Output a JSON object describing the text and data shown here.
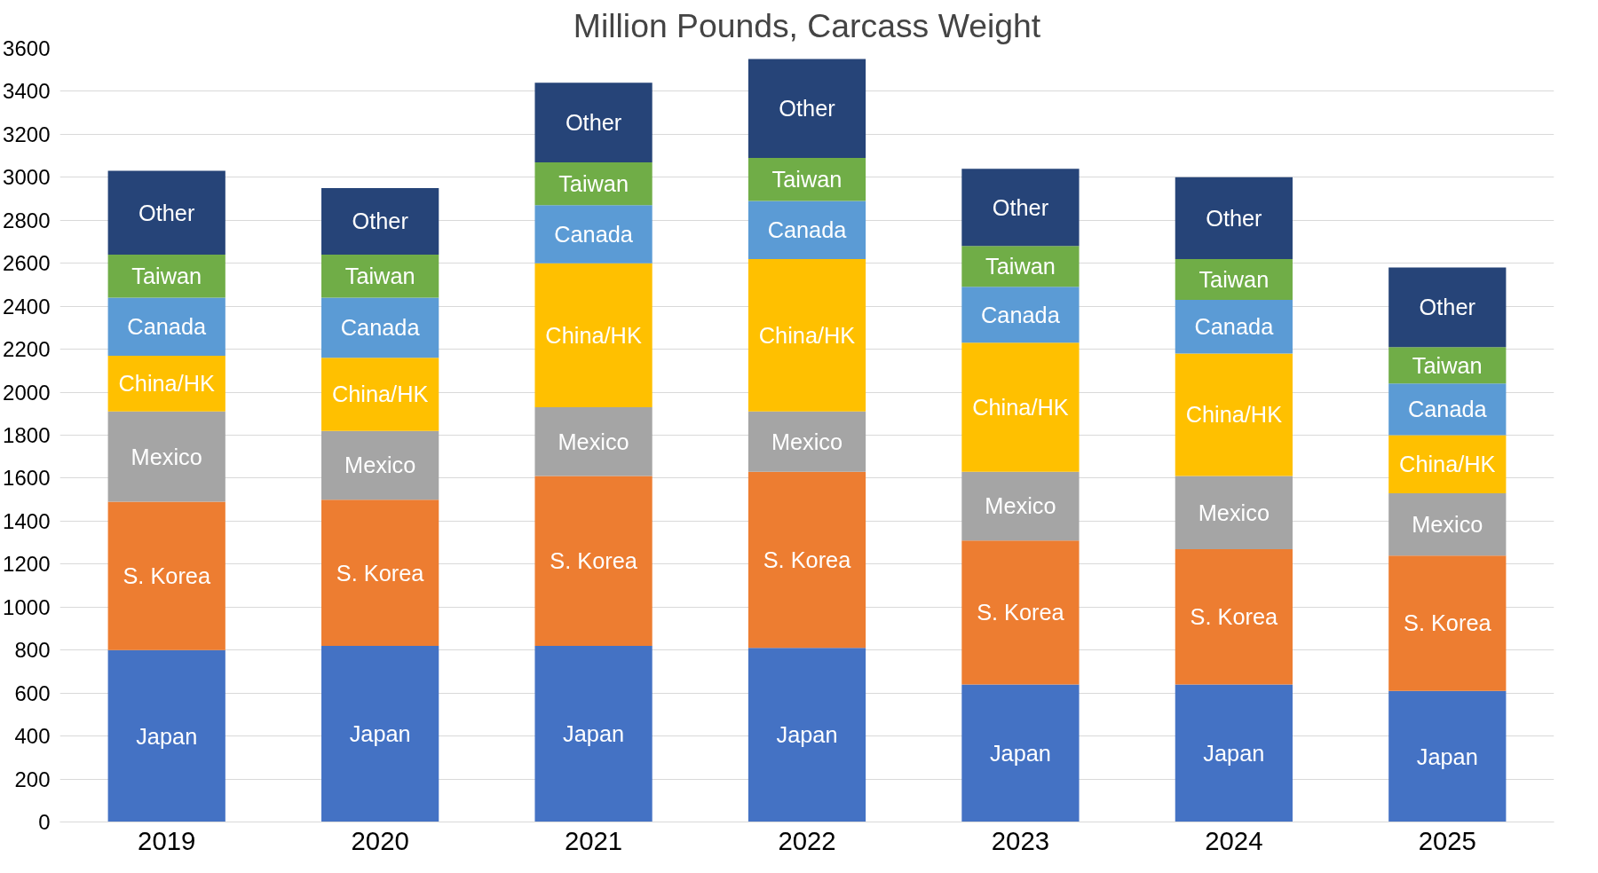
{
  "chart_data": {
    "type": "bar",
    "stacked": true,
    "title": "Million Pounds, Carcass Weight",
    "categories": [
      "2019",
      "2020",
      "2021",
      "2022",
      "2023",
      "2024",
      "2025"
    ],
    "series": [
      {
        "name": "Japan",
        "color": "#4472c4",
        "values": [
          800,
          820,
          820,
          810,
          640,
          640,
          610
        ]
      },
      {
        "name": "S. Korea",
        "color": "#ed7d31",
        "values": [
          690,
          680,
          790,
          820,
          670,
          630,
          630
        ]
      },
      {
        "name": "Mexico",
        "color": "#a5a5a5",
        "values": [
          420,
          320,
          320,
          280,
          320,
          340,
          290
        ]
      },
      {
        "name": "China/HK",
        "color": "#ffc000",
        "values": [
          260,
          340,
          670,
          710,
          600,
          570,
          270
        ]
      },
      {
        "name": "Canada",
        "color": "#5b9bd5",
        "values": [
          270,
          280,
          270,
          270,
          260,
          250,
          240
        ]
      },
      {
        "name": "Taiwan",
        "color": "#70ad47",
        "values": [
          200,
          200,
          200,
          200,
          190,
          190,
          170
        ]
      },
      {
        "name": "Other",
        "color": "#264478",
        "values": [
          390,
          310,
          370,
          460,
          360,
          380,
          370
        ]
      }
    ],
    "ylim": [
      0,
      3600
    ],
    "yticks": [
      0,
      200,
      400,
      600,
      800,
      1000,
      1200,
      1400,
      1600,
      1800,
      2000,
      2200,
      2400,
      2600,
      2800,
      3000,
      3200,
      3400,
      3600
    ],
    "grid": "y"
  }
}
